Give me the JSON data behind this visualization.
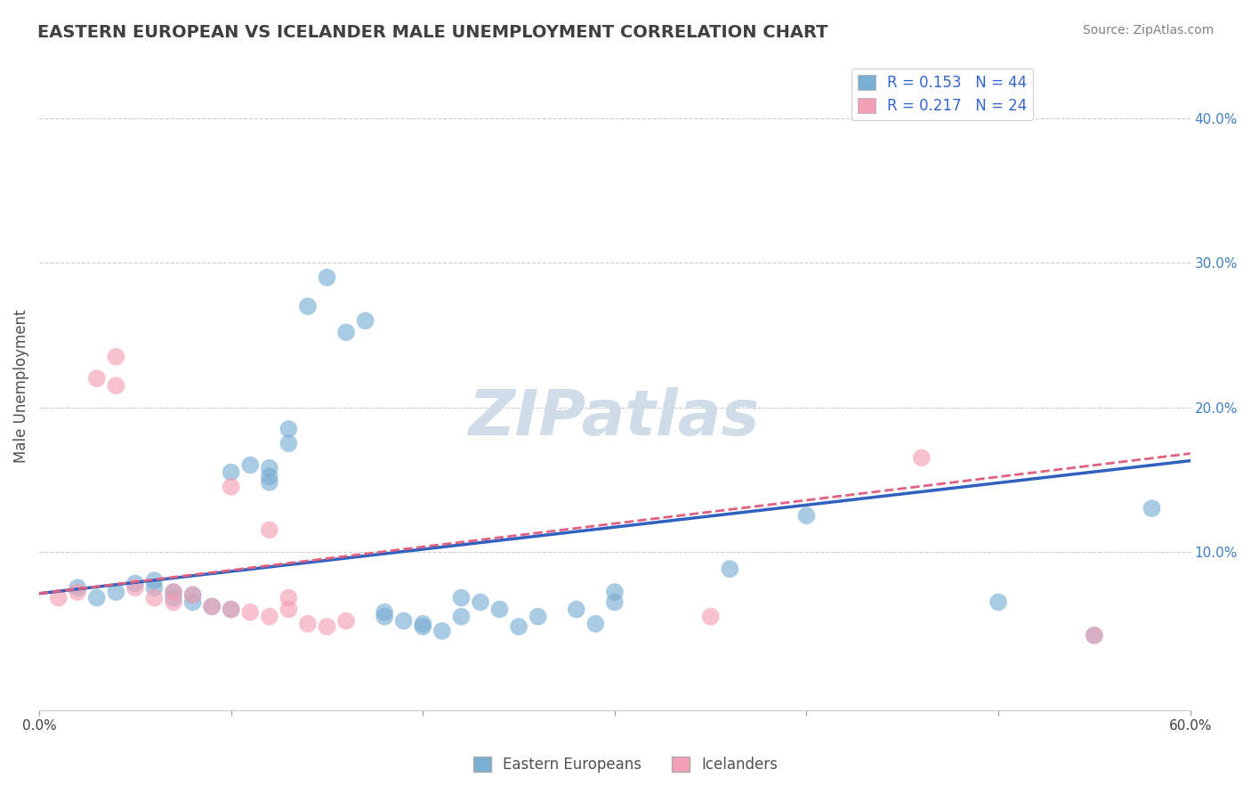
{
  "title": "EASTERN EUROPEAN VS ICELANDER MALE UNEMPLOYMENT CORRELATION CHART",
  "source": "Source: ZipAtlas.com",
  "xlabel": "",
  "ylabel": "Male Unemployment",
  "xlim": [
    0.0,
    0.6
  ],
  "ylim": [
    -0.01,
    0.44
  ],
  "xticks": [
    0.0,
    0.1,
    0.2,
    0.3,
    0.4,
    0.5,
    0.6
  ],
  "xticklabels": [
    "0.0%",
    "",
    "",
    "",
    "",
    "",
    "60.0%"
  ],
  "yticks_right": [
    0.0,
    0.1,
    0.2,
    0.3,
    0.4
  ],
  "ytick_right_labels": [
    "",
    "10.0%",
    "20.0%",
    "30.0%",
    "40.0%"
  ],
  "legend_items": [
    {
      "label": "R = 0.153   N = 44",
      "color": "#a8c4e0"
    },
    {
      "label": "R = 0.217   N = 24",
      "color": "#f4a0b0"
    }
  ],
  "blue_scatter": [
    [
      0.02,
      0.075
    ],
    [
      0.03,
      0.068
    ],
    [
      0.04,
      0.072
    ],
    [
      0.05,
      0.078
    ],
    [
      0.06,
      0.08
    ],
    [
      0.06,
      0.075
    ],
    [
      0.07,
      0.068
    ],
    [
      0.07,
      0.072
    ],
    [
      0.08,
      0.065
    ],
    [
      0.08,
      0.07
    ],
    [
      0.09,
      0.062
    ],
    [
      0.1,
      0.06
    ],
    [
      0.1,
      0.155
    ],
    [
      0.11,
      0.16
    ],
    [
      0.12,
      0.148
    ],
    [
      0.12,
      0.152
    ],
    [
      0.12,
      0.158
    ],
    [
      0.13,
      0.175
    ],
    [
      0.13,
      0.185
    ],
    [
      0.14,
      0.27
    ],
    [
      0.15,
      0.29
    ],
    [
      0.16,
      0.252
    ],
    [
      0.17,
      0.26
    ],
    [
      0.18,
      0.055
    ],
    [
      0.18,
      0.058
    ],
    [
      0.19,
      0.052
    ],
    [
      0.2,
      0.048
    ],
    [
      0.2,
      0.05
    ],
    [
      0.21,
      0.045
    ],
    [
      0.22,
      0.068
    ],
    [
      0.22,
      0.055
    ],
    [
      0.23,
      0.065
    ],
    [
      0.24,
      0.06
    ],
    [
      0.25,
      0.048
    ],
    [
      0.26,
      0.055
    ],
    [
      0.28,
      0.06
    ],
    [
      0.29,
      0.05
    ],
    [
      0.3,
      0.065
    ],
    [
      0.3,
      0.072
    ],
    [
      0.36,
      0.088
    ],
    [
      0.4,
      0.125
    ],
    [
      0.5,
      0.065
    ],
    [
      0.55,
      0.042
    ],
    [
      0.58,
      0.13
    ]
  ],
  "pink_scatter": [
    [
      0.01,
      0.068
    ],
    [
      0.02,
      0.072
    ],
    [
      0.03,
      0.22
    ],
    [
      0.04,
      0.235
    ],
    [
      0.04,
      0.215
    ],
    [
      0.05,
      0.075
    ],
    [
      0.06,
      0.068
    ],
    [
      0.07,
      0.072
    ],
    [
      0.07,
      0.065
    ],
    [
      0.08,
      0.07
    ],
    [
      0.09,
      0.062
    ],
    [
      0.1,
      0.06
    ],
    [
      0.1,
      0.145
    ],
    [
      0.11,
      0.058
    ],
    [
      0.12,
      0.115
    ],
    [
      0.12,
      0.055
    ],
    [
      0.13,
      0.068
    ],
    [
      0.13,
      0.06
    ],
    [
      0.14,
      0.05
    ],
    [
      0.15,
      0.048
    ],
    [
      0.16,
      0.052
    ],
    [
      0.35,
      0.055
    ],
    [
      0.46,
      0.165
    ],
    [
      0.55,
      0.042
    ]
  ],
  "blue_line": [
    [
      0.0,
      0.071
    ],
    [
      0.6,
      0.163
    ]
  ],
  "pink_line": [
    [
      0.0,
      0.071
    ],
    [
      0.6,
      0.168
    ]
  ],
  "scatter_color_blue": "#7bafd4",
  "scatter_color_pink": "#f4a0b4",
  "line_color_blue": "#3060c0",
  "line_color_pink": "#e06080",
  "background_color": "#ffffff",
  "grid_color": "#cccccc",
  "title_color": "#404040",
  "source_color": "#808080",
  "watermark": "ZIPatlas",
  "watermark_color": "#d0dce8"
}
